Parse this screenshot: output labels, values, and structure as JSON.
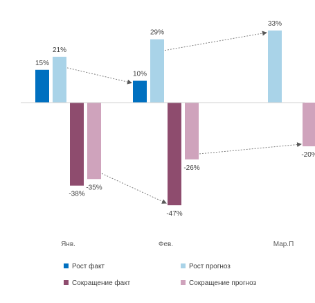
{
  "chart_data": {
    "type": "bar",
    "categories": [
      "Янв.",
      "Фев.",
      "Мар.П"
    ],
    "series": [
      {
        "name": "Рост факт",
        "values": [
          15,
          10,
          null
        ],
        "color": "#0070C0"
      },
      {
        "name": "Рост прогноз",
        "values": [
          21,
          29,
          33
        ],
        "color": "#A9D3E8"
      },
      {
        "name": "Сокращение факт",
        "values": [
          -38,
          -47,
          null
        ],
        "color": "#8E4C6E"
      },
      {
        "name": "Сокращение прогноз",
        "values": [
          -35,
          -26,
          -20
        ],
        "color": "#CFA3BC"
      }
    ],
    "data_labels": {
      "Рост факт": [
        "15%",
        "10%",
        ""
      ],
      "Рост прогноз": [
        "21%",
        "29%",
        "33%"
      ],
      "Сокращение факт": [
        "-38%",
        "-47%",
        ""
      ],
      "Сокращение прогноз": [
        "-35%",
        "-26%",
        "-20%"
      ]
    },
    "ylim": [
      -55,
      40
    ],
    "unit": "%",
    "legend_position": "bottom",
    "grid": false,
    "annotations": [
      {
        "type": "dotted-arrow",
        "from": {
          "series": "Рост прогноз",
          "category": "Янв."
        },
        "to": {
          "series": "Рост факт",
          "category": "Фев."
        }
      },
      {
        "type": "dotted-arrow",
        "from": {
          "series": "Рост прогноз",
          "category": "Фев."
        },
        "to": {
          "series": "Рост прогноз",
          "category": "Мар.П"
        }
      },
      {
        "type": "dotted-arrow",
        "from": {
          "series": "Сокращение прогноз",
          "category": "Янв."
        },
        "to": {
          "series": "Сокращение факт",
          "category": "Фев."
        }
      },
      {
        "type": "dotted-arrow",
        "from": {
          "series": "Сокращение прогноз",
          "category": "Фев."
        },
        "to": {
          "series": "Сокращение прогноз",
          "category": "Мар.П"
        }
      }
    ]
  }
}
